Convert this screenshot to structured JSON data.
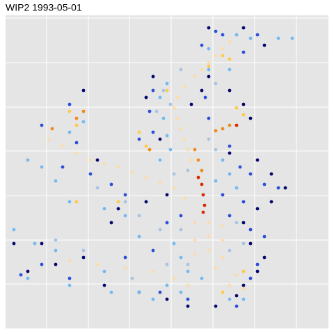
{
  "chart_data": {
    "type": "scatter",
    "title": "WIP2 1993-05-01",
    "xlim": [
      8,
      472
    ],
    "ylim": [
      8,
      458
    ],
    "xticks": [
      67,
      127,
      186,
      246,
      306,
      366,
      426
    ],
    "yticks": [
      72,
      135,
      199,
      263,
      326,
      390,
      454
    ],
    "grid": true,
    "background": "#e5e5e5",
    "grid_color": "#ffffff",
    "series": [
      {
        "color": "#07086e",
        "x": [
          300,
          350,
          380,
          330,
          220,
          210,
          275,
          290,
          350,
          360,
          330,
          370,
          390,
          410,
          390,
          370,
          350,
          360,
          380,
          370,
          350,
          340,
          310,
          270,
          240,
          200,
          150,
          120,
          80,
          40,
          20,
          60,
          140,
          170,
          210,
          120,
          300,
          230,
          240,
          160
        ],
        "values": [
          440,
          440,
          415,
          350,
          370,
          340,
          330,
          350,
          330,
          310,
          260,
          250,
          230,
          210,
          190,
          180,
          160,
          130,
          110,
          90,
          70,
          55,
          40,
          40,
          50,
          60,
          70,
          110,
          100,
          90,
          130,
          130,
          250,
          180,
          190,
          350,
          370,
          280,
          200,
          160
        ]
      },
      {
        "color": "#2b4fd8",
        "x": [
          310,
          320,
          290,
          370,
          350,
          220,
          215,
          220,
          295,
          300,
          330,
          345,
          360,
          380,
          400,
          350,
          320,
          180,
          160,
          130,
          90,
          110,
          60,
          100,
          200,
          240,
          260,
          330,
          360,
          380,
          370,
          360,
          220,
          180,
          60,
          100,
          30,
          230,
          270,
          340
        ],
        "values": [
          435,
          430,
          415,
          430,
          405,
          350,
          320,
          290,
          340,
          310,
          270,
          240,
          230,
          215,
          210,
          190,
          200,
          200,
          215,
          230,
          240,
          275,
          300,
          330,
          280,
          160,
          170,
          170,
          150,
          140,
          100,
          80,
          120,
          110,
          100,
          80,
          85,
          60,
          50,
          40
        ]
      },
      {
        "color": "#74b9f0",
        "x": [
          340,
          360,
          400,
          300,
          240,
          230,
          235,
          240,
          245,
          230,
          320,
          330,
          340,
          310,
          100,
          120,
          60,
          40,
          80,
          100,
          150,
          180,
          200,
          250,
          260,
          270,
          290,
          260,
          240,
          200,
          150,
          80,
          50,
          20,
          40,
          100,
          160,
          220,
          330,
          350,
          300,
          330,
          420
        ],
        "values": [
          430,
          425,
          425,
          410,
          360,
          340,
          310,
          285,
          265,
          250,
          250,
          230,
          210,
          220,
          290,
          305,
          240,
          250,
          220,
          190,
          180,
          170,
          140,
          130,
          110,
          90,
          80,
          60,
          70,
          60,
          90,
          120,
          130,
          150,
          80,
          70,
          60,
          50,
          50,
          50,
          380,
          380,
          425
        ]
      },
      {
        "color": "#a8c4e4",
        "x": [
          235,
          245,
          260,
          300,
          310,
          270,
          250,
          180,
          140,
          200,
          230,
          260,
          340,
          350,
          330,
          270,
          240,
          120,
          80,
          190,
          310,
          225
        ],
        "values": [
          350,
          330,
          380,
          280,
          265,
          235,
          230,
          190,
          210,
          170,
          150,
          150,
          160,
          130,
          120,
          100,
          100,
          120,
          135,
          80,
          360,
          320
        ]
      },
      {
        "color": "#fcdcab",
        "x": [
          330,
          320,
          310,
          300,
          290,
          280,
          265,
          255,
          250,
          255,
          260,
          265,
          270,
          275,
          70,
          90,
          110,
          130,
          150,
          170,
          190,
          210,
          230,
          250,
          265,
          280,
          300,
          320,
          300,
          280,
          320,
          300,
          280,
          320,
          310,
          340,
          330,
          350,
          100,
          140,
          180,
          220,
          250,
          270
        ],
        "values": [
          420,
          410,
          400,
          390,
          380,
          370,
          355,
          340,
          325,
          310,
          295,
          280,
          265,
          250,
          280,
          270,
          260,
          250,
          245,
          240,
          232,
          225,
          218,
          210,
          195,
          160,
          160,
          155,
          140,
          135,
          135,
          120,
          115,
          110,
          95,
          85,
          70,
          65,
          105,
          100,
          95,
          90,
          80,
          70
        ]
      },
      {
        "color": "#ffc94a",
        "x": [
          320,
          330,
          300,
          340,
          350,
          240,
          210,
          200,
          170,
          110,
          100,
          350,
          320,
          110
        ],
        "values": [
          400,
          395,
          385,
          325,
          315,
          350,
          270,
          290,
          190,
          190,
          320,
          90,
          60,
          300
        ]
      },
      {
        "color": "#f08a1a",
        "x": [
          280,
          285,
          290,
          330,
          320,
          310,
          215,
          110,
          120,
          75
        ],
        "values": [
          265,
          250,
          235,
          300,
          295,
          292,
          265,
          310,
          320,
          295
        ]
      },
      {
        "color": "#d92b00",
        "x": [
          285,
          290,
          292,
          294,
          292,
          340
        ],
        "values": [
          225,
          215,
          200,
          185,
          175,
          300
        ]
      }
    ]
  }
}
